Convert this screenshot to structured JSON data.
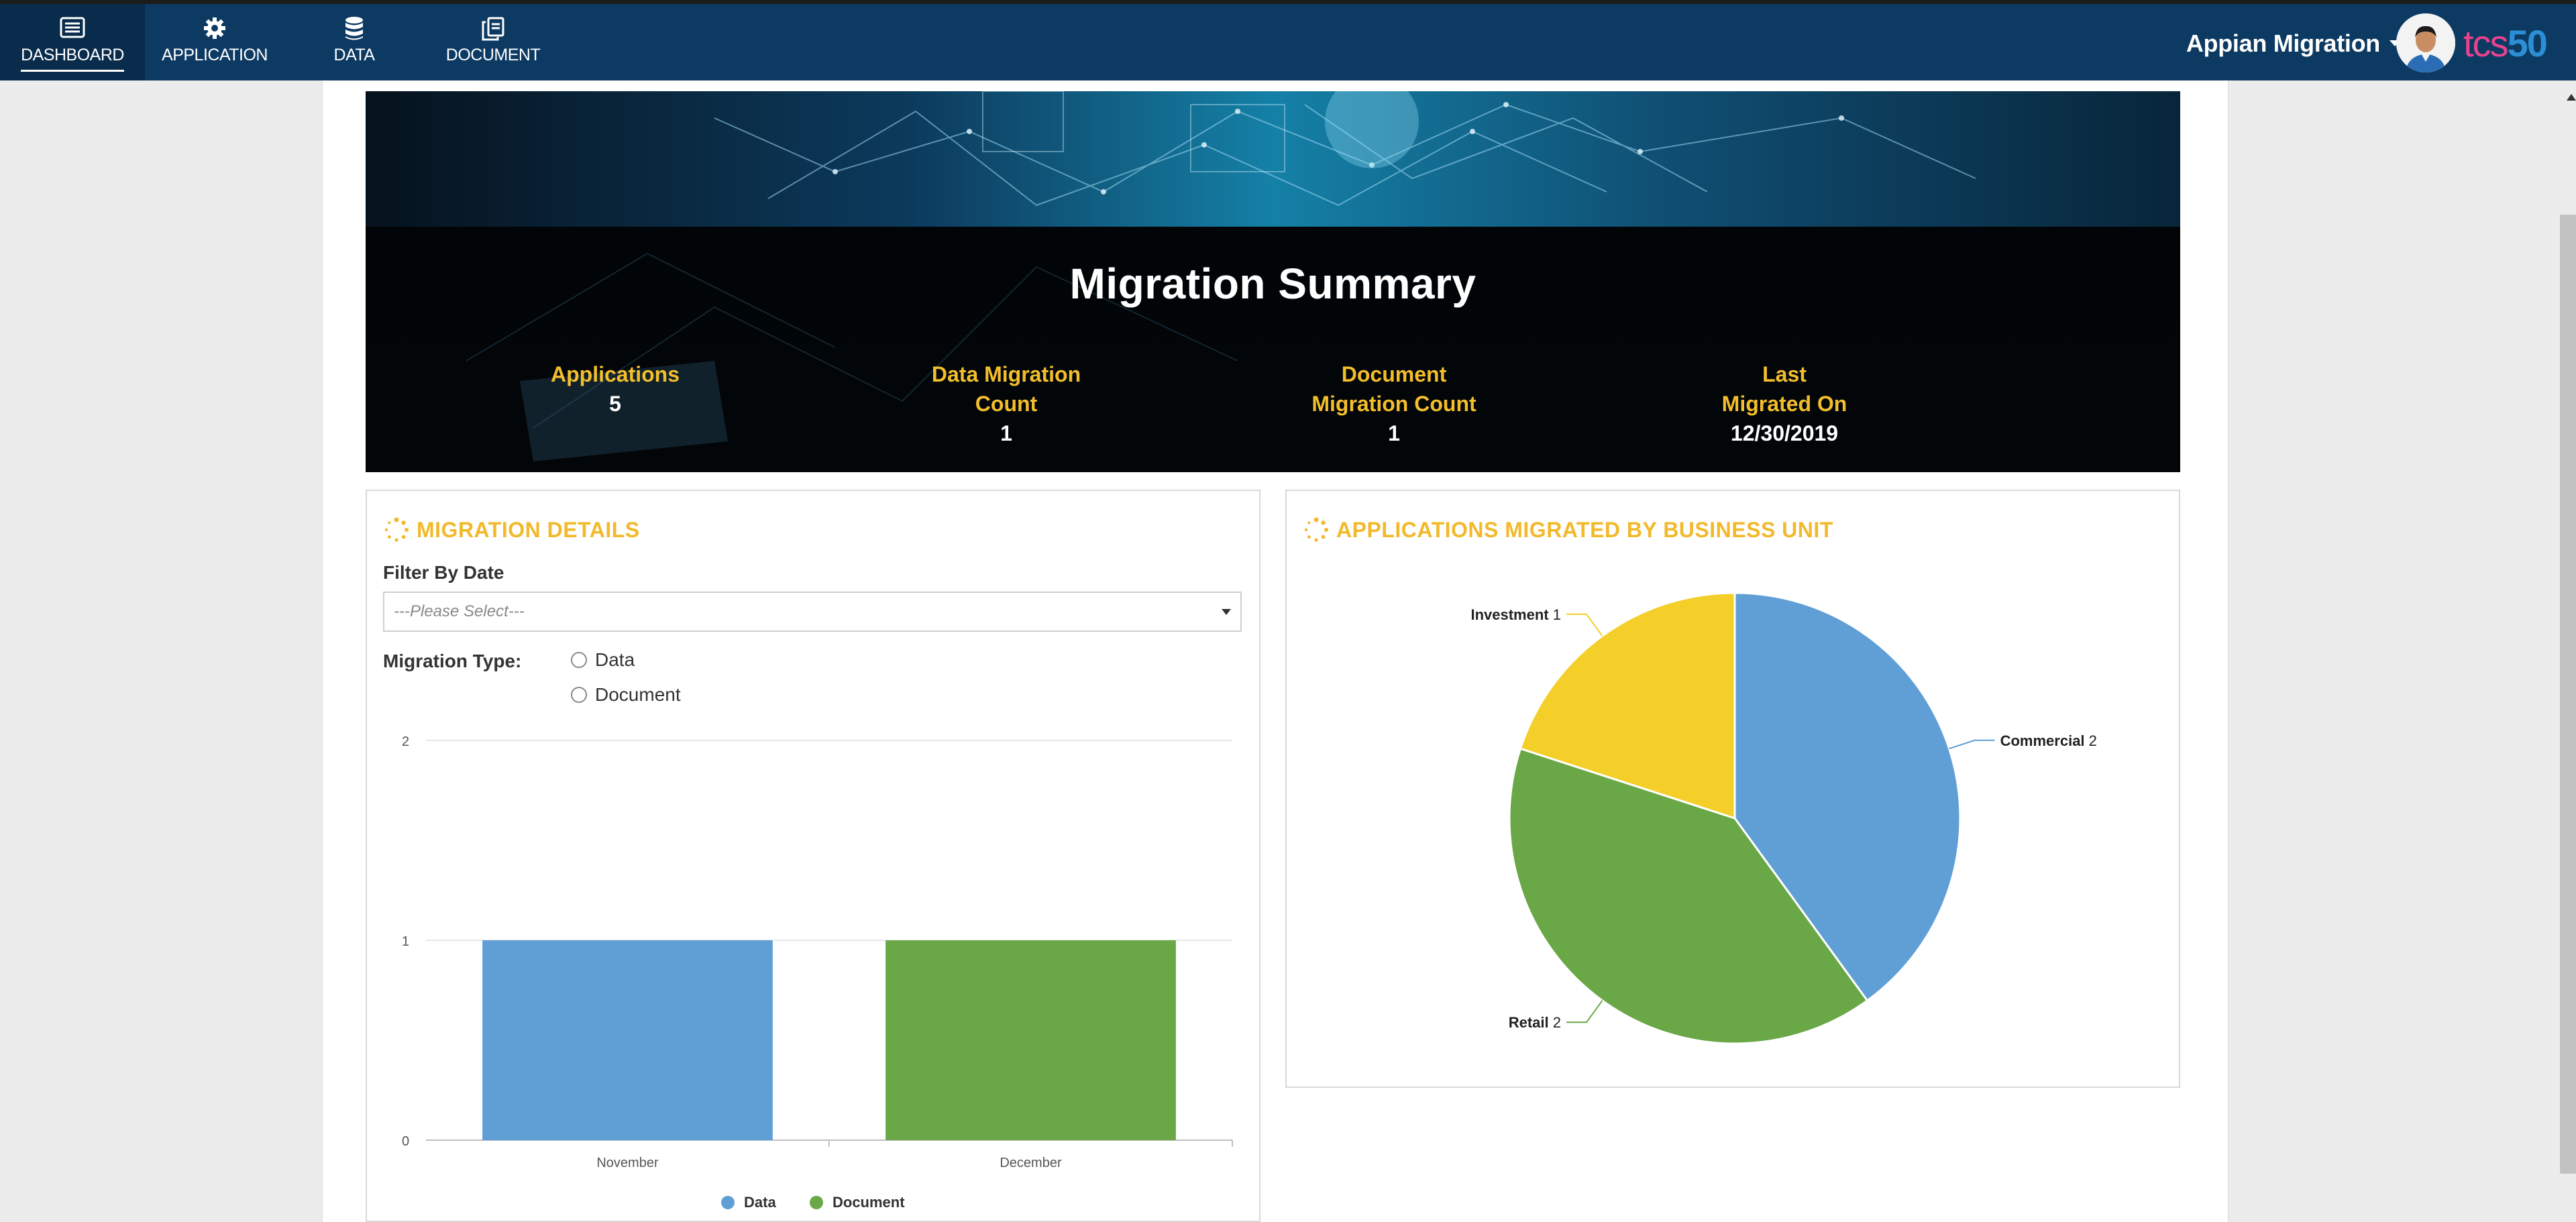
{
  "nav": {
    "items": [
      {
        "label": "DASHBOARD",
        "icon": "dashboard-icon",
        "active": true
      },
      {
        "label": "APPLICATION",
        "icon": "gear-icon",
        "active": false
      },
      {
        "label": "DATA",
        "icon": "database-icon",
        "active": false
      },
      {
        "label": "DOCUMENT",
        "icon": "documents-icon",
        "active": false
      }
    ],
    "user_name": "Appian Migration",
    "brand_light": "tcs",
    "brand_bold": "50"
  },
  "banner": {
    "title": "Migration Summary",
    "metrics": [
      {
        "label": "Applications",
        "value": "5"
      },
      {
        "label_1": "Data Migration",
        "label_2": "Count",
        "value": "1"
      },
      {
        "label_1": "Document",
        "label_2": "Migration Count",
        "value": "1"
      },
      {
        "label_1": "Last",
        "label_2": "Migrated On",
        "value": "12/30/2019"
      }
    ]
  },
  "migration_details": {
    "title": "MIGRATION DETAILS",
    "filter_label": "Filter By Date",
    "filter_placeholder": "---Please Select---",
    "type_label": "Migration Type:",
    "type_options": [
      "Data",
      "Document"
    ]
  },
  "business_unit": {
    "title": "APPLICATIONS MIGRATED BY BUSINESS UNIT"
  },
  "colors": {
    "nav_bg": "#0d3a63",
    "accent_yellow": "#f2b92a",
    "data_blue": "#5f9fd6",
    "document_green": "#6aa746",
    "investment_yellow": "#f4cf2a"
  },
  "chart_data": [
    {
      "type": "bar",
      "categories": [
        "November",
        "December"
      ],
      "series": [
        {
          "name": "Data",
          "values": [
            1,
            0
          ],
          "color": "#5f9fd6"
        },
        {
          "name": "Document",
          "values": [
            0,
            1
          ],
          "color": "#6aa746"
        }
      ],
      "y_ticks": [
        "0",
        "1",
        "2"
      ],
      "ylim": [
        0,
        2
      ],
      "grid": true,
      "legend": "bottom"
    },
    {
      "type": "pie",
      "slices": [
        {
          "label": "Commercial",
          "value": 2,
          "color": "#5f9fd6"
        },
        {
          "label": "Retail",
          "value": 2,
          "color": "#6aa746"
        },
        {
          "label": "Investment",
          "value": 1,
          "color": "#f4cf2a"
        }
      ],
      "legend": "none"
    }
  ]
}
